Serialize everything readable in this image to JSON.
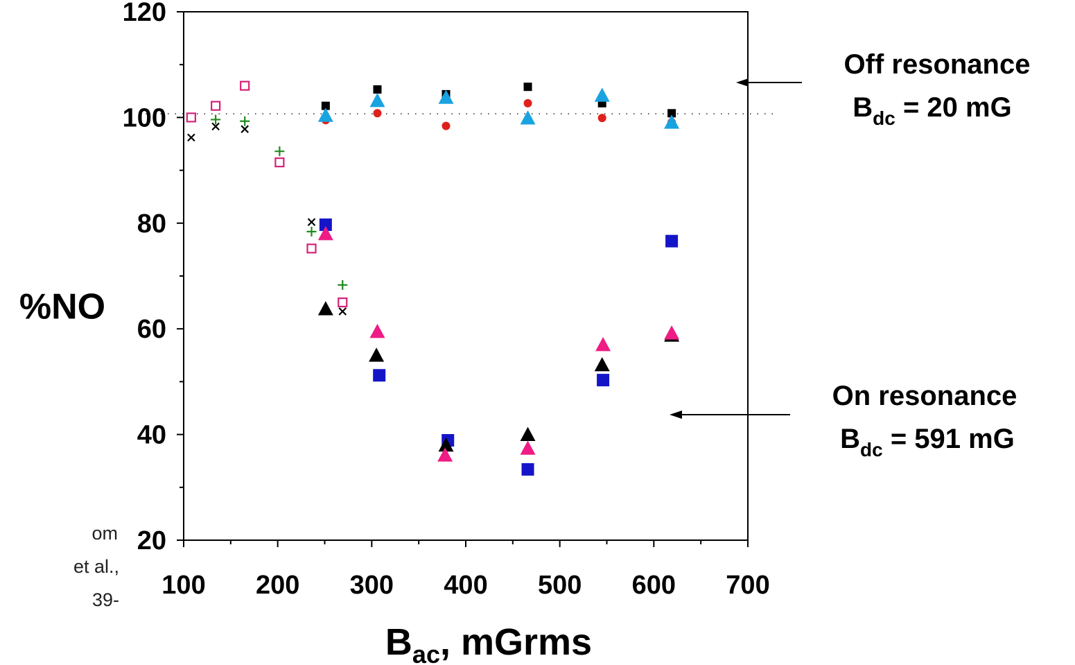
{
  "chart_data": {
    "type": "scatter",
    "xlabel": "B",
    "xlabel_sub": "ac",
    "xlabel_rest": ", mGrms",
    "ylabel": "%NO",
    "xlim": [
      100,
      700
    ],
    "ylim": [
      20,
      120
    ],
    "x_ticks": [
      100,
      200,
      300,
      400,
      500,
      600,
      700
    ],
    "y_ticks": [
      20,
      40,
      60,
      80,
      100,
      120
    ],
    "reference_line": {
      "y": 100.7,
      "style": "dotted"
    },
    "series": [
      {
        "marker": "square",
        "color": "#000000",
        "size": "small",
        "points": [
          [
            251,
            102.2
          ],
          [
            306,
            105.3
          ],
          [
            379,
            104.4
          ],
          [
            466,
            105.8
          ],
          [
            545,
            102.7
          ],
          [
            619,
            100.8
          ]
        ]
      },
      {
        "marker": "circle",
        "color": "#e0201b",
        "size": "small",
        "points": [
          [
            251,
            99.5
          ],
          [
            306,
            100.8
          ],
          [
            379,
            98.4
          ],
          [
            466,
            102.7
          ],
          [
            545,
            99.9
          ],
          [
            619,
            99.1
          ]
        ]
      },
      {
        "marker": "triangle",
        "color": "#19a3e0",
        "size": "large",
        "points": [
          [
            251,
            100.4
          ],
          [
            306,
            103.2
          ],
          [
            379,
            103.8
          ],
          [
            466,
            99.9
          ],
          [
            545,
            104.2
          ],
          [
            619,
            99.1
          ]
        ]
      },
      {
        "marker": "cross",
        "color": "#000000",
        "size": "small",
        "points": [
          [
            108,
            96.2
          ],
          [
            134,
            98.3
          ],
          [
            165,
            97.8
          ],
          [
            236,
            80.2
          ],
          [
            269,
            63.3
          ]
        ]
      },
      {
        "marker": "plus",
        "color": "#1e8a1e",
        "size": "small",
        "points": [
          [
            134,
            99.6
          ],
          [
            165,
            99.3
          ],
          [
            202,
            93.6
          ],
          [
            236,
            78.4
          ],
          [
            269,
            68.3
          ]
        ]
      },
      {
        "marker": "open-square",
        "color": "#d4217a",
        "size": "small",
        "points": [
          [
            108,
            100.0
          ],
          [
            134,
            102.2
          ],
          [
            165,
            106.0
          ],
          [
            202,
            91.5
          ],
          [
            236,
            75.2
          ],
          [
            269,
            65.0
          ]
        ]
      },
      {
        "marker": "square",
        "color": "#1515c8",
        "size": "large",
        "points": [
          [
            251,
            79.7
          ],
          [
            308,
            51.2
          ],
          [
            381,
            38.9
          ],
          [
            466,
            33.4
          ],
          [
            546,
            50.3
          ],
          [
            619,
            76.6
          ]
        ]
      },
      {
        "marker": "triangle",
        "color": "#000000",
        "size": "large",
        "points": [
          [
            251,
            63.8
          ],
          [
            305,
            55.0
          ],
          [
            379,
            38.0
          ],
          [
            466,
            40.0
          ],
          [
            545,
            53.2
          ],
          [
            619,
            58.8
          ]
        ]
      },
      {
        "marker": "triangle",
        "color": "#ee1c84",
        "size": "large",
        "points": [
          [
            251,
            78.0
          ],
          [
            306,
            59.5
          ],
          [
            378,
            36.1
          ],
          [
            466,
            37.4
          ],
          [
            546,
            57.0
          ],
          [
            619,
            59.2
          ]
        ]
      }
    ]
  },
  "annotations": {
    "off": {
      "line1": "Off resonance",
      "line2_main": "B",
      "line2_sub": "dc",
      "line2_rest": " = 20 mG"
    },
    "on": {
      "line1": "On resonance",
      "line2_main": "B",
      "line2_sub": "dc",
      "line2_rest": " = 591 mG"
    }
  },
  "citation_fragments": [
    "om",
    "et al.,",
    "39-"
  ]
}
